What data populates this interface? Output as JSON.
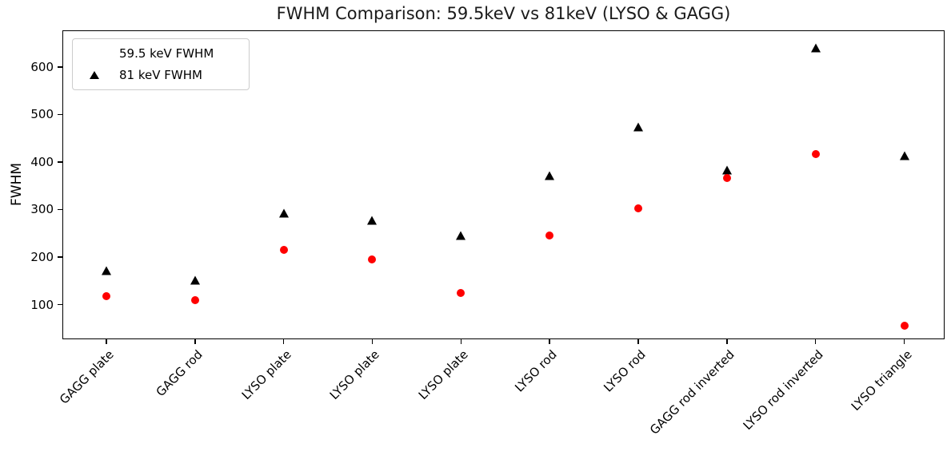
{
  "title": "FWHM Comparison: 59.5keV vs 81keV (LYSO & GAGG)",
  "colors": {
    "series1": "#ff0000",
    "series2": "#000000",
    "spine": "#000000",
    "legend_border": "#cccccc",
    "background": "#ffffff"
  },
  "chart_data": {
    "type": "scatter",
    "title": "FWHM Comparison: 59.5keV vs 81keV (LYSO & GAGG)",
    "xlabel": "",
    "ylabel": "FWHM",
    "categories": [
      "GAGG plate",
      "GAGG rod",
      "LYSO plate",
      "LYSO plate",
      "LYSO plate",
      "LYSO rod",
      "LYSO rod",
      "GAGG rod inverted",
      "LYSO rod inverted",
      "LYSO triangle"
    ],
    "series": [
      {
        "name": "59.5 keV FWHM",
        "marker": "circle",
        "color": "#ff0000",
        "values": [
          118,
          110,
          215,
          195,
          125,
          245,
          303,
          367,
          417,
          55
        ]
      },
      {
        "name": "81 keV FWHM",
        "marker": "triangle",
        "color": "#000000",
        "values": [
          172,
          152,
          292,
          278,
          246,
          371,
          474,
          383,
          640,
          413
        ]
      }
    ],
    "yticks": [
      100,
      200,
      300,
      400,
      500,
      600
    ],
    "ylim": [
      27,
      677
    ],
    "xtick_rotation": 45,
    "grid": false,
    "legend_position": "upper left"
  }
}
